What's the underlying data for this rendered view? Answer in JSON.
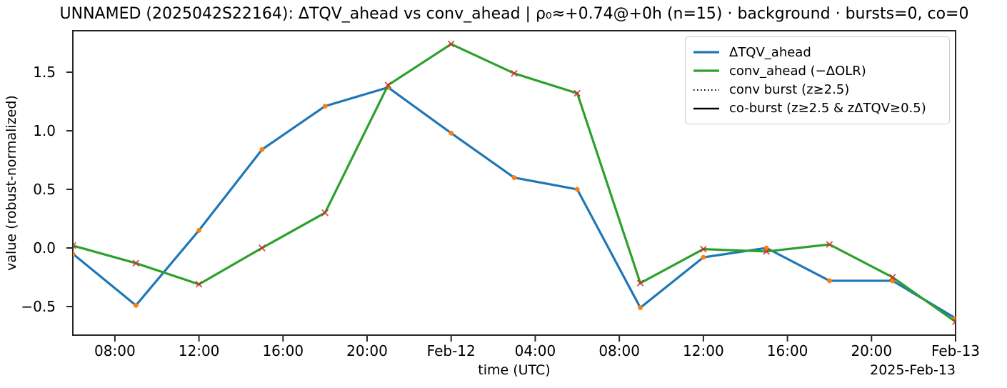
{
  "title": "UNNAMED (2025042S22164): ΔTQV_ahead vs conv_ahead | ρ₀≈+0.74@+0h (n=15) · background · bursts=0, co=0",
  "axes": {
    "xlabel": "time (UTC)",
    "ylabel": "value (robust-normalized)",
    "offset_text": "2025-Feb-13"
  },
  "legend": {
    "position": "upper right",
    "items": [
      {
        "label": "ΔTQV_ahead",
        "color": "#1f77b4",
        "line": "solid"
      },
      {
        "label": "conv_ahead (−ΔOLR)",
        "color": "#2ca02c",
        "line": "solid"
      },
      {
        "label": "conv burst (z≥2.5)",
        "color": "#000000",
        "line": "dotted"
      },
      {
        "label": "co-burst (z≥2.5 & zΔTQV≥0.5)",
        "color": "#000000",
        "line": "solid"
      }
    ]
  },
  "chart_data": {
    "type": "line",
    "title": "UNNAMED (2025042S22164): ΔTQV_ahead vs conv_ahead | ρ₀≈+0.74@+0h (n=15) · background · bursts=0, co=0",
    "xlabel": "time (UTC)",
    "ylabel": "value (robust-normalized)",
    "grid": false,
    "x_start": "2025-Feb-11 06:00 UTC",
    "x_step_hours": 3,
    "x_hours_from_start": [
      0,
      3,
      6,
      9,
      12,
      15,
      18,
      21,
      24,
      27,
      30,
      33,
      36,
      39,
      42
    ],
    "x_time_labels": [
      "Feb-11 06:00",
      "Feb-11 09:00",
      "Feb-11 12:00",
      "Feb-11 15:00",
      "Feb-11 18:00",
      "Feb-11 21:00",
      "Feb-12 00:00",
      "Feb-12 03:00",
      "Feb-12 06:00",
      "Feb-12 09:00",
      "Feb-12 12:00",
      "Feb-12 15:00",
      "Feb-12 18:00",
      "Feb-12 21:00",
      "Feb-13 00:00"
    ],
    "series": [
      {
        "name": "ΔTQV_ahead",
        "color": "#1f77b4",
        "marker": "circle",
        "marker_color": "#ff7f0e",
        "values": [
          -0.05,
          -0.49,
          0.15,
          0.84,
          1.21,
          1.37,
          0.98,
          0.6,
          0.5,
          -0.51,
          -0.08,
          0.0,
          -0.28,
          -0.28,
          -0.6
        ]
      },
      {
        "name": "conv_ahead (−ΔOLR)",
        "color": "#2ca02c",
        "marker": "x",
        "marker_color": "#d62728",
        "values": [
          0.02,
          -0.13,
          -0.31,
          0.0,
          0.3,
          1.39,
          1.74,
          1.49,
          1.32,
          -0.3,
          -0.01,
          -0.03,
          0.03,
          -0.25,
          -0.63
        ]
      }
    ],
    "xlim_hours": [
      0,
      42
    ],
    "ylim": [
      -0.744,
      1.854
    ],
    "xticks": [
      {
        "hour": 2,
        "label": "08:00"
      },
      {
        "hour": 6,
        "label": "12:00"
      },
      {
        "hour": 10,
        "label": "16:00"
      },
      {
        "hour": 14,
        "label": "20:00"
      },
      {
        "hour": 18,
        "label": "Feb-12"
      },
      {
        "hour": 22,
        "label": "04:00"
      },
      {
        "hour": 26,
        "label": "08:00"
      },
      {
        "hour": 30,
        "label": "12:00"
      },
      {
        "hour": 34,
        "label": "16:00"
      },
      {
        "hour": 38,
        "label": "20:00"
      },
      {
        "hour": 42,
        "label": "Feb-13"
      }
    ],
    "yticks": {
      "values": [
        -0.5,
        0.0,
        0.5,
        1.0,
        1.5
      ],
      "labels": [
        "−0.5",
        "0.0",
        "0.5",
        "1.0",
        "1.5"
      ]
    }
  }
}
